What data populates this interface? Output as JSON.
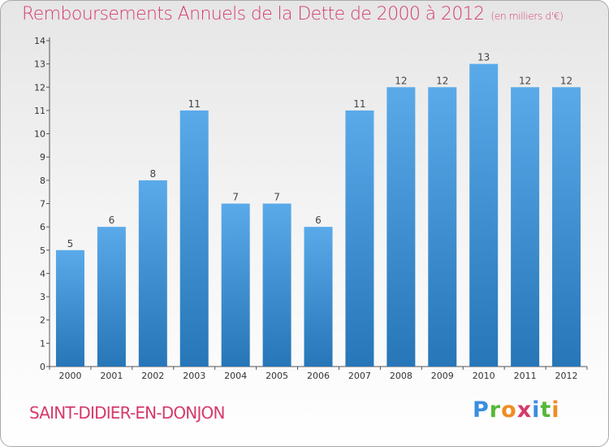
{
  "chart_data": {
    "type": "bar",
    "title": "Remboursements Annuels de la Dette de 2000 à 2012",
    "subtitle": "(en milliers d'€)",
    "categories": [
      "2000",
      "2001",
      "2002",
      "2003",
      "2004",
      "2005",
      "2006",
      "2007",
      "2008",
      "2009",
      "2010",
      "2011",
      "2012"
    ],
    "values": [
      5,
      6,
      8,
      11,
      7,
      7,
      6,
      11,
      12,
      12,
      13,
      12,
      12
    ],
    "ylim": [
      0,
      14
    ],
    "yticks": [
      0,
      1,
      2,
      3,
      4,
      5,
      6,
      7,
      8,
      9,
      10,
      11,
      12,
      13,
      14
    ],
    "grid": false,
    "bar_color_top": "#5aaaea",
    "bar_color_bottom": "#2676b8"
  },
  "footer": {
    "city": "SAINT-DIDIER-EN-DONJON",
    "logo_letters": [
      "P",
      "r",
      "o",
      "x",
      "i",
      "t",
      "i"
    ]
  },
  "colors": {
    "accent": "#d63a6b"
  }
}
